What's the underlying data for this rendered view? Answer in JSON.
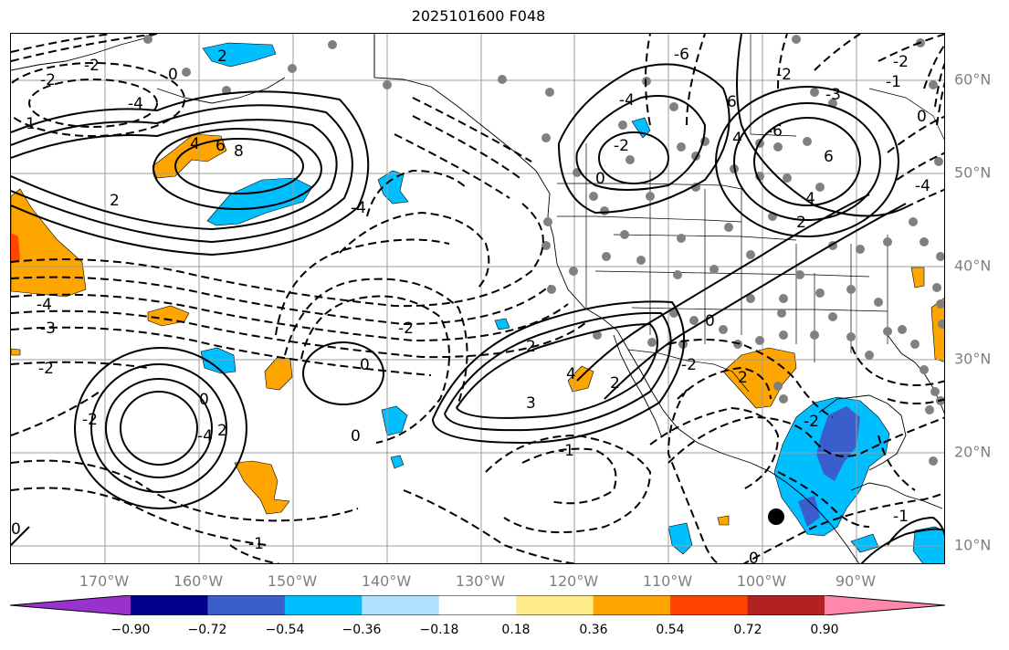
{
  "title": "2025101600 F048",
  "longitude_labels": [
    "170°W",
    "160°W",
    "150°W",
    "140°W",
    "130°W",
    "120°W",
    "110°W",
    "100°W",
    "90°W"
  ],
  "latitude_labels": [
    "60°N",
    "50°N",
    "40°N",
    "30°N",
    "20°N",
    "10°N"
  ],
  "colorbar": {
    "ticks": [
      "−0.90",
      "−0.72",
      "−0.54",
      "−0.36",
      "−0.18",
      "0.18",
      "0.36",
      "0.54",
      "0.72",
      "0.90"
    ],
    "colors": [
      "#9932cc",
      "#00008b",
      "#3a5fcd",
      "#00bfff",
      "#b0e2ff",
      "#ffffff",
      "#ffec8b",
      "#ffa500",
      "#ff4500",
      "#b22222",
      "#ff88aa"
    ]
  },
  "style": {
    "gridline_color": "#9e9e9e",
    "station_marker_color": "#808080",
    "contour_color": "#000000"
  },
  "contour_labels": [
    {
      "text": "-2"
    },
    {
      "text": "-4"
    },
    {
      "text": "0"
    },
    {
      "text": "2"
    },
    {
      "text": "4"
    },
    {
      "text": "6"
    },
    {
      "text": "8"
    },
    {
      "text": "1"
    },
    {
      "text": "2"
    },
    {
      "text": "-4"
    },
    {
      "text": "-3"
    },
    {
      "text": "-2"
    },
    {
      "text": "-2"
    },
    {
      "text": "-2"
    },
    {
      "text": "0"
    },
    {
      "text": "0"
    },
    {
      "text": "-4"
    },
    {
      "text": "2"
    },
    {
      "text": "-4"
    },
    {
      "text": "0"
    },
    {
      "text": "-2"
    },
    {
      "text": "-1"
    },
    {
      "text": "-1"
    },
    {
      "text": "2"
    },
    {
      "text": "3"
    },
    {
      "text": "4"
    },
    {
      "text": "0"
    },
    {
      "text": "2"
    },
    {
      "text": "-2"
    },
    {
      "text": "0"
    },
    {
      "text": "-6"
    },
    {
      "text": "-4"
    },
    {
      "text": "6"
    },
    {
      "text": "4"
    },
    {
      "text": "-2"
    },
    {
      "text": "-3"
    },
    {
      "text": "-6"
    },
    {
      "text": "6"
    },
    {
      "text": "4"
    },
    {
      "text": "2"
    },
    {
      "text": "-4"
    },
    {
      "text": "-1"
    },
    {
      "text": "0"
    },
    {
      "text": "-2"
    },
    {
      "text": "0"
    },
    {
      "text": "-2"
    },
    {
      "text": "2"
    },
    {
      "text": "-2"
    },
    {
      "text": "0"
    },
    {
      "text": "-1"
    }
  ]
}
